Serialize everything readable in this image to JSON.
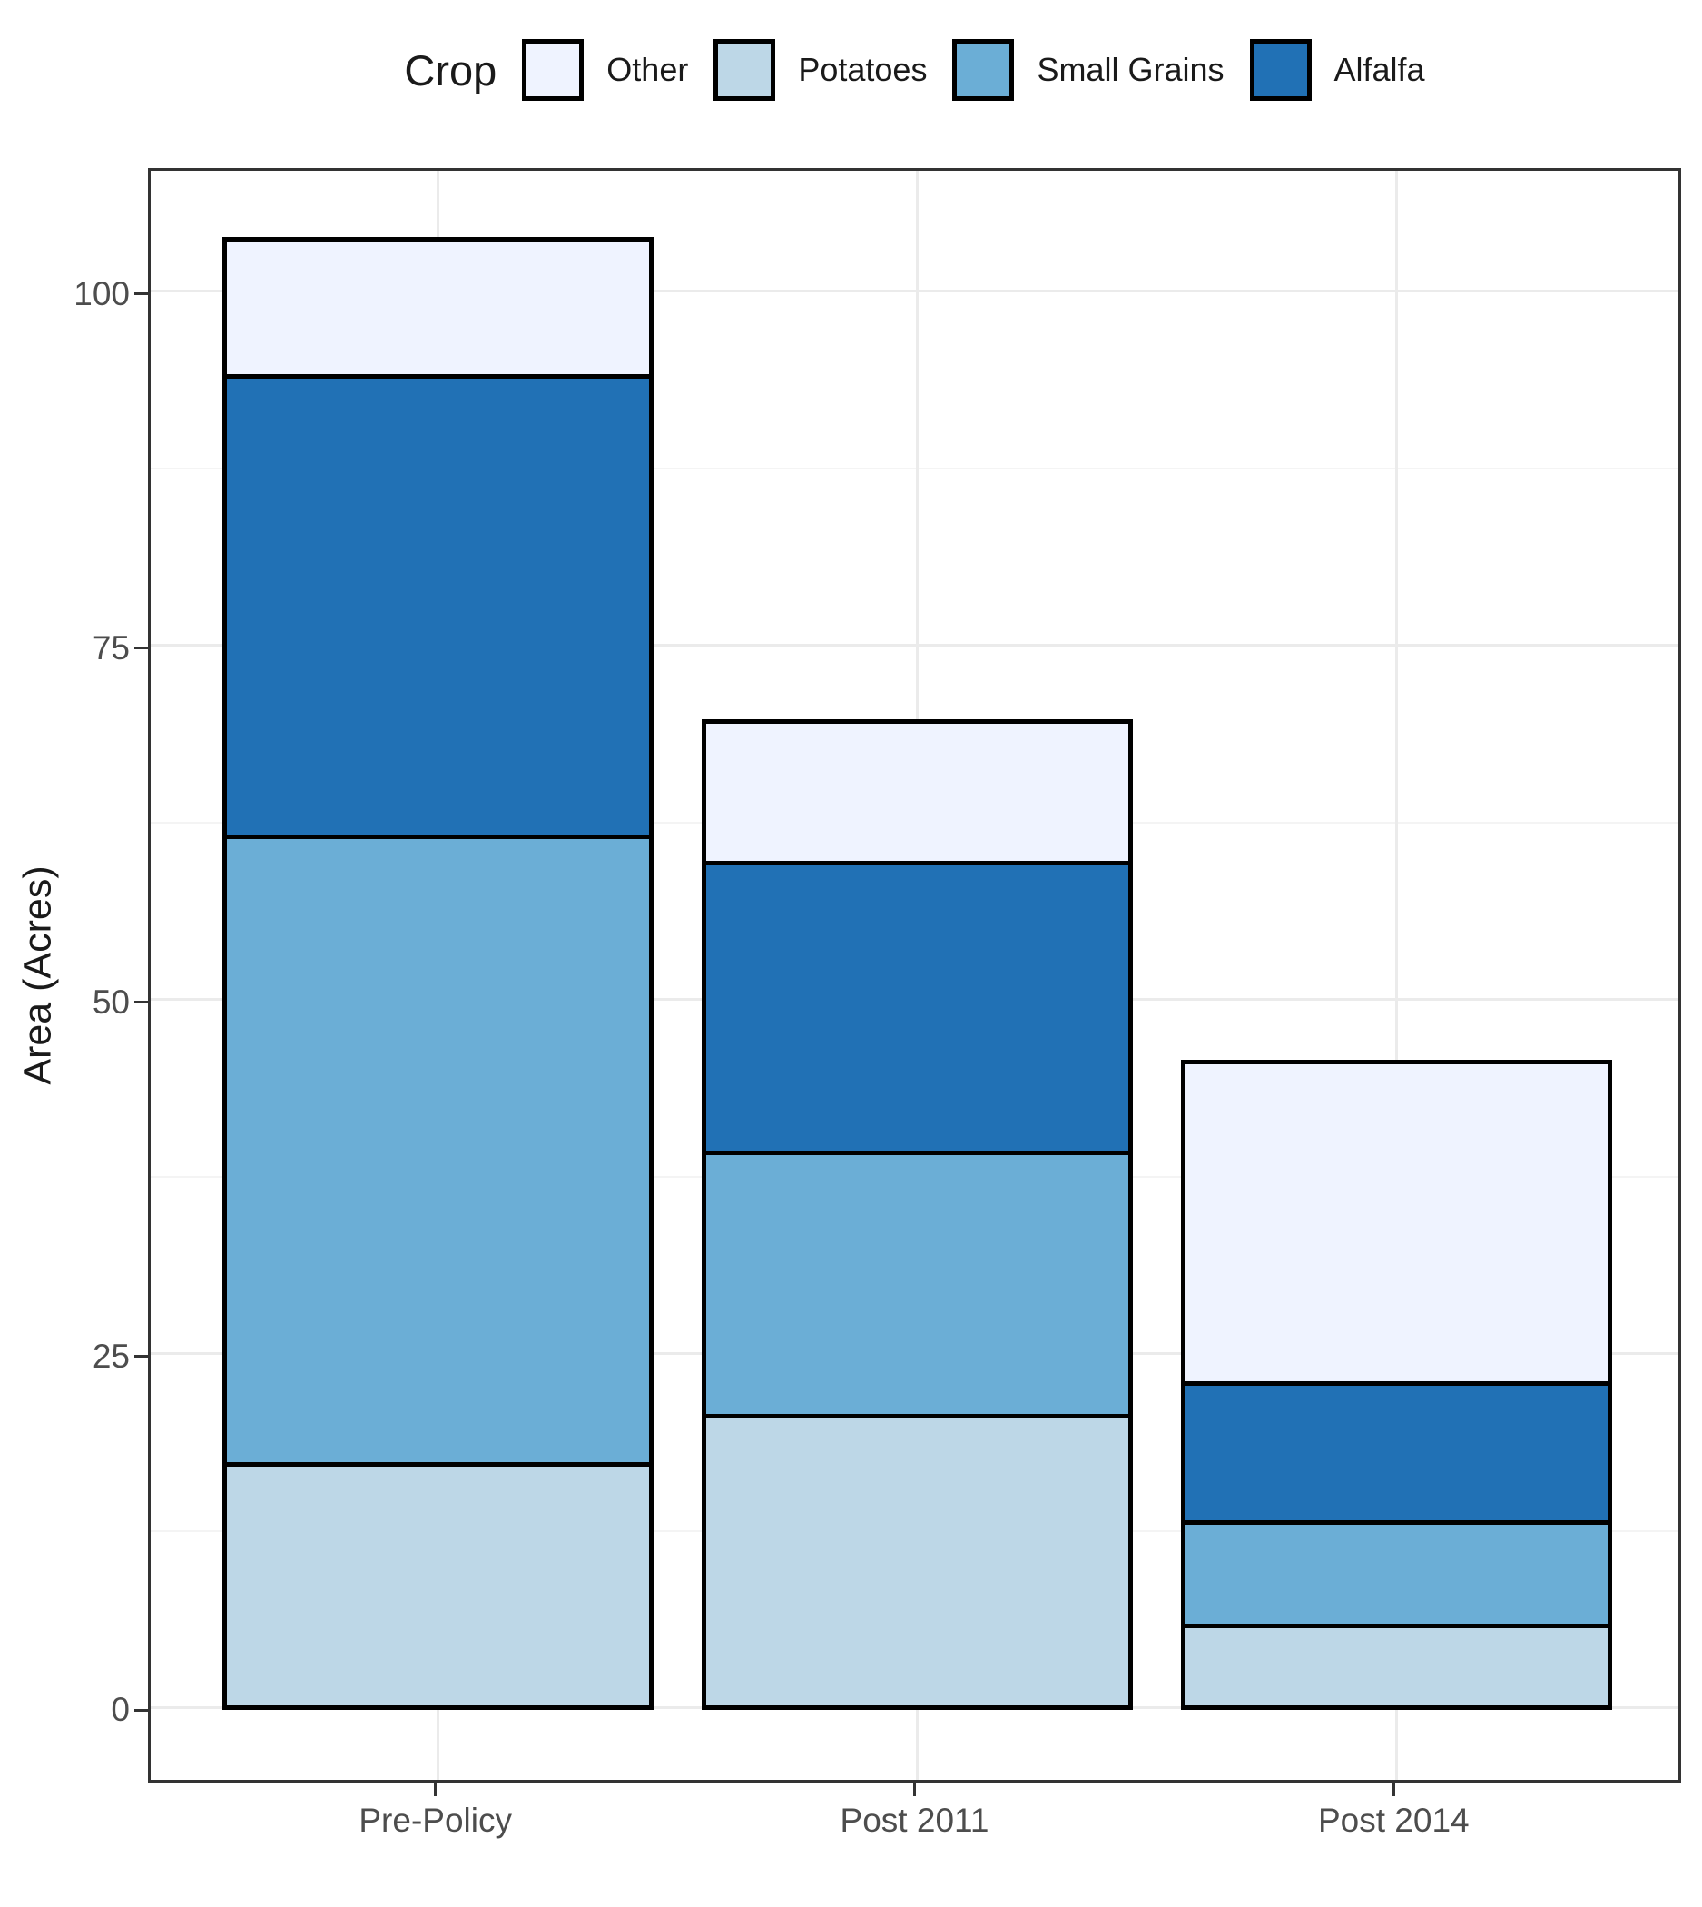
{
  "legend": {
    "title": "Crop",
    "items": [
      {
        "label": "Other",
        "color": "#EFF3FF"
      },
      {
        "label": "Potatoes",
        "color": "#BDD7E7"
      },
      {
        "label": "Small Grains",
        "color": "#6BAED6"
      },
      {
        "label": "Alfalfa",
        "color": "#2171B5"
      }
    ]
  },
  "y_axis": {
    "title": "Area (Acres)",
    "ticks": [
      0,
      25,
      50,
      75,
      100
    ],
    "tick_labels": [
      "0",
      "25",
      "50",
      "75",
      "100"
    ],
    "minor_ticks": [
      12.5,
      37.5,
      62.5,
      87.5
    ],
    "range": [
      -5.1,
      108.9
    ]
  },
  "x_axis": {
    "categories": [
      "Pre-Policy",
      "Post 2011",
      "Post 2014"
    ]
  },
  "chart_data": {
    "type": "bar",
    "stacked": true,
    "orientation": "vertical",
    "title": "",
    "legend_title": "Crop",
    "legend_position": "top",
    "categories": [
      "Pre-Policy",
      "Post 2011",
      "Post 2014"
    ],
    "series": [
      {
        "name": "Potatoes",
        "color": "#BDD7E7",
        "values": [
          17.2,
          20.6,
          5.8
        ]
      },
      {
        "name": "Small Grains",
        "color": "#6BAED6",
        "values": [
          44.3,
          18.6,
          7.3
        ]
      },
      {
        "name": "Alfalfa",
        "color": "#2171B5",
        "values": [
          32.5,
          20.4,
          9.8
        ]
      },
      {
        "name": "Other",
        "color": "#EFF3FF",
        "values": [
          9.7,
          10.0,
          22.7
        ]
      }
    ],
    "stack_totals": [
      103.7,
      69.6,
      45.6
    ],
    "xlabel": "",
    "ylabel": "Area (Acres)",
    "ylim": [
      0,
      108.9
    ],
    "yticks": [
      0,
      25,
      50,
      75,
      100
    ],
    "grid": true,
    "bar_border_color": "#000000",
    "grid_major_color": "#EBEBEB",
    "grid_minor_color": "#F4F4F4",
    "axis_text_color": "#4D4D4D"
  }
}
